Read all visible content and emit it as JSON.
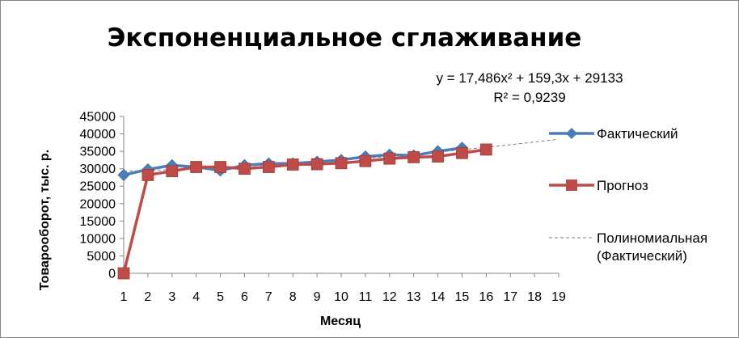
{
  "chart_data": {
    "type": "line",
    "title": "Экспоненциальное сглаживание",
    "xlabel": "Месяц",
    "ylabel": "Товарооборот,  тыс. р.",
    "x": [
      1,
      2,
      3,
      4,
      5,
      6,
      7,
      8,
      9,
      10,
      11,
      12,
      13,
      14,
      15,
      16,
      17,
      18,
      19
    ],
    "xlim": [
      1,
      19
    ],
    "ylim": [
      0,
      45000
    ],
    "yticks": [
      0,
      5000,
      10000,
      15000,
      20000,
      25000,
      30000,
      35000,
      40000,
      45000
    ],
    "grid": false,
    "legend_position": "right",
    "series": [
      {
        "name": "Фактический",
        "color": "#4a7ebb",
        "marker": "diamond",
        "x": [
          1,
          2,
          3,
          4,
          5,
          6,
          7,
          8,
          9,
          10,
          11,
          12,
          13,
          14,
          15
        ],
        "values": [
          28200,
          29800,
          31000,
          30500,
          29500,
          31000,
          31500,
          31500,
          32000,
          32500,
          33500,
          34000,
          33800,
          35000,
          36000
        ]
      },
      {
        "name": "Прогноз",
        "color": "#be4b48",
        "marker": "square",
        "x": [
          1,
          2,
          3,
          4,
          5,
          6,
          7,
          8,
          9,
          10,
          11,
          12,
          13,
          14,
          15,
          16
        ],
        "values": [
          0,
          28200,
          29300,
          30500,
          30500,
          30000,
          30500,
          31200,
          31300,
          31600,
          32200,
          32900,
          33300,
          33500,
          34500,
          35500
        ]
      }
    ],
    "trendline": {
      "name": "Полиномиальная (Фактический)",
      "color": "#7f7f7f",
      "style": "dashed",
      "from_series": "Фактический",
      "type": "polynomial",
      "order": 2,
      "equation_label": "y = 17,486x² + 159,3x + 29133",
      "r2_label": "R² = 0,9239",
      "coefficients": {
        "a": 17.486,
        "b": 159.3,
        "c": 29133
      }
    }
  }
}
